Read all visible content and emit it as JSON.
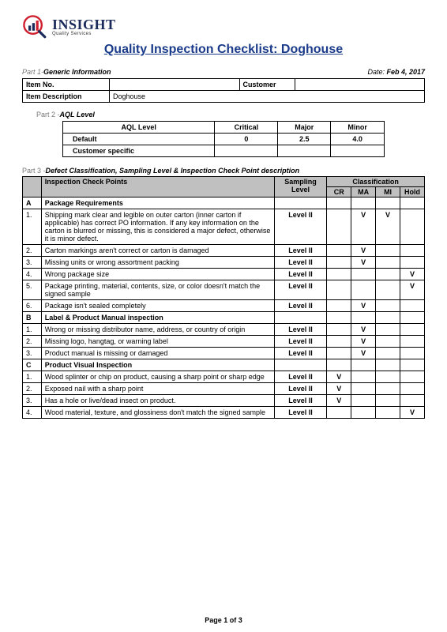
{
  "logo": {
    "main": "INSIGHT",
    "sub": "Quality Services"
  },
  "title": "Quality Inspection Checklist: Doghouse",
  "part1": {
    "num": "Part 1-",
    "name": "Generic Information",
    "date_label": "Date: ",
    "date": "Feb 4, 2017",
    "item_no_label": "Item No.",
    "item_no": "",
    "customer_label": "Customer",
    "customer": "",
    "item_desc_label": "Item Description",
    "item_desc": "Doghouse"
  },
  "part2": {
    "num": "Part 2 -",
    "name": "AQL Level",
    "headers": {
      "aql": "AQL Level",
      "critical": "Critical",
      "major": "Major",
      "minor": "Minor"
    },
    "rows": [
      {
        "label": "Default",
        "critical": "0",
        "major": "2.5",
        "minor": "4.0"
      },
      {
        "label": "Customer specific",
        "critical": "",
        "major": "",
        "minor": ""
      }
    ]
  },
  "part3": {
    "num": "Part 3 -",
    "name": "Defect Classification, Sampling Level & Inspection Check Point description",
    "headers": {
      "icp": "Inspection Check Points",
      "sl": "Sampling Level",
      "cls": "Classification",
      "cr": "CR",
      "ma": "MA",
      "mi": "MI",
      "hold": "Hold"
    },
    "sections": [
      {
        "id": "A",
        "title": "Package Requirements",
        "rows": [
          {
            "n": "1.",
            "text": "Shipping mark clear and legible on outer carton (inner carton if applicable) has correct PO information. If any key information on the carton is blurred or missing, this is considered a major defect, otherwise it is minor defect.",
            "sl": "Level II",
            "cr": "",
            "ma": "V",
            "mi": "V",
            "hold": ""
          },
          {
            "n": "2.",
            "text": "Carton markings aren't correct or carton is damaged",
            "sl": "Level II",
            "cr": "",
            "ma": "V",
            "mi": "",
            "hold": ""
          },
          {
            "n": "3.",
            "text": "Missing units or wrong assortment packing",
            "sl": "Level II",
            "cr": "",
            "ma": "V",
            "mi": "",
            "hold": ""
          },
          {
            "n": "4.",
            "text": "Wrong package size",
            "sl": "Level II",
            "cr": "",
            "ma": "",
            "mi": "",
            "hold": "V"
          },
          {
            "n": "5.",
            "text": "Package printing, material, contents, size, or color doesn't match the signed sample",
            "sl": "Level II",
            "cr": "",
            "ma": "",
            "mi": "",
            "hold": "V"
          },
          {
            "n": "6.",
            "text": "Package isn't sealed completely",
            "sl": "Level II",
            "cr": "",
            "ma": "V",
            "mi": "",
            "hold": ""
          }
        ]
      },
      {
        "id": "B",
        "title": "Label & Product Manual inspection",
        "rows": [
          {
            "n": "1.",
            "text": "Wrong or missing distributor name, address, or country of origin",
            "sl": "Level II",
            "cr": "",
            "ma": "V",
            "mi": "",
            "hold": ""
          },
          {
            "n": "2.",
            "text": "Missing logo, hangtag, or warning label",
            "sl": "Level II",
            "cr": "",
            "ma": "V",
            "mi": "",
            "hold": ""
          },
          {
            "n": "3.",
            "text": "Product manual is missing or damaged",
            "sl": "Level II",
            "cr": "",
            "ma": "V",
            "mi": "",
            "hold": ""
          }
        ]
      },
      {
        "id": "C",
        "title": "Product Visual Inspection",
        "rows": [
          {
            "n": "1.",
            "text": "Wood splinter or chip on product, causing a sharp point or sharp edge",
            "sl": "Level II",
            "cr": "V",
            "ma": "",
            "mi": "",
            "hold": ""
          },
          {
            "n": "2.",
            "text": "Exposed nail with a sharp point",
            "sl": "Level II",
            "cr": "V",
            "ma": "",
            "mi": "",
            "hold": ""
          },
          {
            "n": "3.",
            "text": "Has a hole or live/dead insect on product.",
            "sl": "Level II",
            "cr": "V",
            "ma": "",
            "mi": "",
            "hold": ""
          },
          {
            "n": "4.",
            "text": "Wood material, texture, and glossiness don't match the signed sample",
            "sl": "Level II",
            "cr": "",
            "ma": "",
            "mi": "",
            "hold": "V"
          }
        ]
      }
    ]
  },
  "footer": "Page 1 of 3",
  "colors": {
    "title": "#1a3a8a",
    "logo": "#1a2a5a",
    "header_bg": "#c0c0c0",
    "red": "#d02030"
  }
}
